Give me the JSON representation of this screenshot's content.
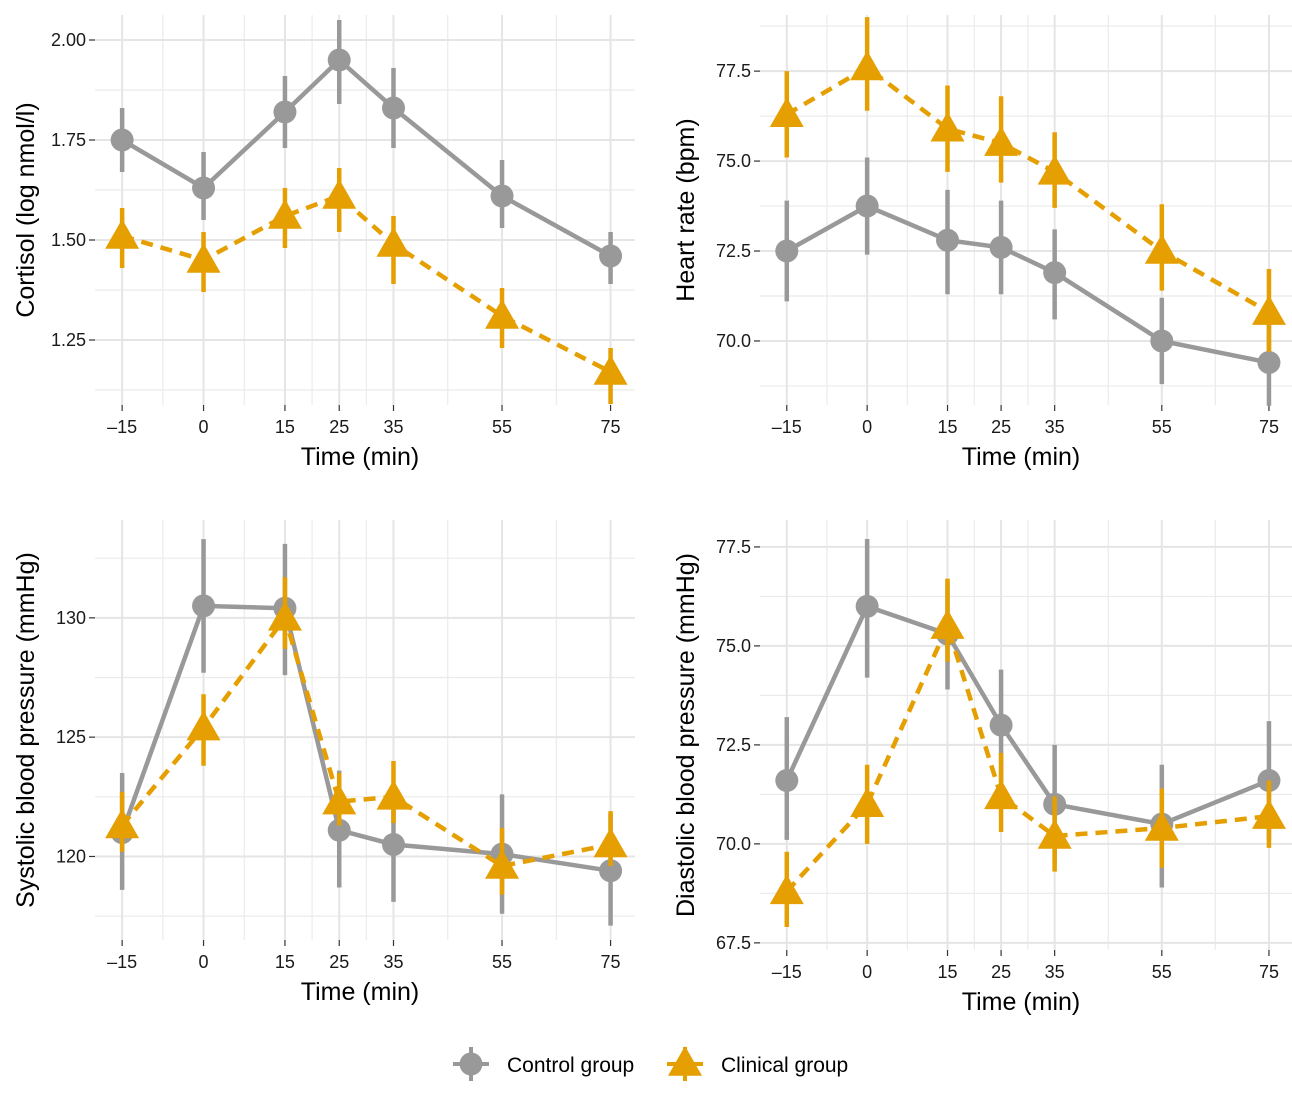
{
  "colors": {
    "control": "#999999",
    "clinical": "#E69F00"
  },
  "legend": {
    "position": "bottom",
    "items": [
      "Control group",
      "Clinical group"
    ]
  },
  "chart_data": [
    {
      "type": "line",
      "xlabel": "Time (min)",
      "ylabel": "Cortisol (log nmol/l)",
      "x": [
        -15,
        0,
        15,
        25,
        35,
        55,
        75
      ],
      "xticks": [
        "–15",
        "0",
        "15",
        "25",
        "35",
        "55",
        "75"
      ],
      "yticks": [
        1.25,
        1.5,
        1.75,
        2.0
      ],
      "ytick_labels": [
        "1.25",
        "1.50",
        "1.75",
        "2.00"
      ],
      "ylim": [
        1.0875,
        2.0625
      ],
      "xlim": [
        -20,
        79.5
      ],
      "grid": true,
      "series": [
        {
          "name": "Control group",
          "values": [
            1.75,
            1.63,
            1.82,
            1.95,
            1.83,
            1.61,
            1.46
          ],
          "lower": [
            1.67,
            1.55,
            1.73,
            1.84,
            1.73,
            1.53,
            1.39
          ],
          "upper": [
            1.83,
            1.72,
            1.91,
            2.05,
            1.93,
            1.7,
            1.52
          ]
        },
        {
          "name": "Clinical group",
          "values": [
            1.51,
            1.45,
            1.56,
            1.61,
            1.49,
            1.31,
            1.17
          ],
          "lower": [
            1.43,
            1.37,
            1.48,
            1.52,
            1.39,
            1.23,
            1.09
          ],
          "upper": [
            1.58,
            1.52,
            1.63,
            1.68,
            1.56,
            1.38,
            1.23
          ]
        }
      ]
    },
    {
      "type": "line",
      "xlabel": "Time (min)",
      "ylabel": "Heart rate (bpm)",
      "x": [
        -15,
        0,
        15,
        25,
        35,
        55,
        75
      ],
      "xticks": [
        "–15",
        "0",
        "15",
        "25",
        "35",
        "55",
        "75"
      ],
      "yticks": [
        70.0,
        72.5,
        75.0,
        77.5
      ],
      "ytick_labels": [
        "70.0",
        "72.5",
        "75.0",
        "77.5"
      ],
      "ylim": [
        68.22,
        79.06
      ],
      "xlim": [
        -20,
        79.3
      ],
      "grid": true,
      "series": [
        {
          "name": "Control group",
          "values": [
            72.5,
            73.75,
            72.8,
            72.6,
            71.9,
            70.0,
            69.4
          ],
          "lower": [
            71.1,
            72.4,
            71.3,
            71.3,
            70.6,
            68.8,
            68.2
          ],
          "upper": [
            73.9,
            75.1,
            74.2,
            73.9,
            73.1,
            71.2,
            70.6
          ]
        },
        {
          "name": "Clinical group",
          "values": [
            76.3,
            77.6,
            75.9,
            75.5,
            74.7,
            72.5,
            70.8
          ],
          "lower": [
            75.1,
            76.4,
            74.7,
            74.4,
            73.7,
            71.4,
            69.7
          ],
          "upper": [
            77.5,
            79.0,
            77.1,
            76.8,
            75.8,
            73.8,
            72.0
          ]
        }
      ]
    },
    {
      "type": "line",
      "xlabel": "Time (min)",
      "ylabel": "Systolic blood pressure (mmHg)",
      "x": [
        -15,
        0,
        15,
        25,
        35,
        55,
        75
      ],
      "xticks": [
        "–15",
        "0",
        "15",
        "25",
        "35",
        "55",
        "75"
      ],
      "yticks": [
        120,
        125,
        130
      ],
      "ytick_labels": [
        "120",
        "125",
        "130"
      ],
      "ylim": [
        116.5,
        134.1
      ],
      "xlim": [
        -20,
        79.5
      ],
      "grid": true,
      "series": [
        {
          "name": "Control group",
          "values": [
            121.0,
            130.5,
            130.4,
            121.1,
            120.5,
            120.1,
            119.4
          ],
          "lower": [
            118.6,
            127.7,
            127.6,
            118.7,
            118.1,
            117.6,
            117.1
          ],
          "upper": [
            123.5,
            133.3,
            133.1,
            123.6,
            123.0,
            122.6,
            121.8
          ]
        },
        {
          "name": "Clinical group",
          "values": [
            121.3,
            125.4,
            130.0,
            122.3,
            122.5,
            119.6,
            120.5
          ],
          "lower": [
            120.2,
            123.8,
            128.7,
            121.3,
            121.4,
            118.4,
            119.6
          ],
          "upper": [
            122.7,
            126.8,
            131.7,
            123.5,
            124.0,
            121.2,
            121.9
          ]
        }
      ]
    },
    {
      "type": "line",
      "xlabel": "Time (min)",
      "ylabel": "Diastolic blood pressure (mmHg)",
      "x": [
        -15,
        0,
        15,
        25,
        35,
        55,
        75
      ],
      "xticks": [
        "–15",
        "0",
        "15",
        "25",
        "35",
        "55",
        "75"
      ],
      "yticks": [
        67.5,
        70.0,
        72.5,
        75.0,
        77.5
      ],
      "ytick_labels": [
        "67.5",
        "70.0",
        "72.5",
        "75.0",
        "77.5"
      ],
      "ylim": [
        67.32,
        78.18
      ],
      "xlim": [
        -20,
        79.3
      ],
      "grid": true,
      "series": [
        {
          "name": "Control group",
          "values": [
            71.6,
            76.0,
            75.3,
            73.0,
            71.0,
            70.5,
            71.6
          ],
          "lower": [
            70.1,
            74.2,
            73.9,
            71.5,
            69.5,
            68.9,
            70.1
          ],
          "upper": [
            73.2,
            77.7,
            76.6,
            74.4,
            72.5,
            72.0,
            73.1
          ]
        },
        {
          "name": "Clinical group",
          "values": [
            68.8,
            71.0,
            75.5,
            71.2,
            70.2,
            70.4,
            70.7
          ],
          "lower": [
            67.9,
            70.0,
            74.6,
            70.3,
            69.3,
            69.4,
            69.9
          ],
          "upper": [
            69.8,
            72.0,
            76.7,
            72.3,
            71.2,
            71.4,
            71.6
          ]
        }
      ]
    }
  ]
}
